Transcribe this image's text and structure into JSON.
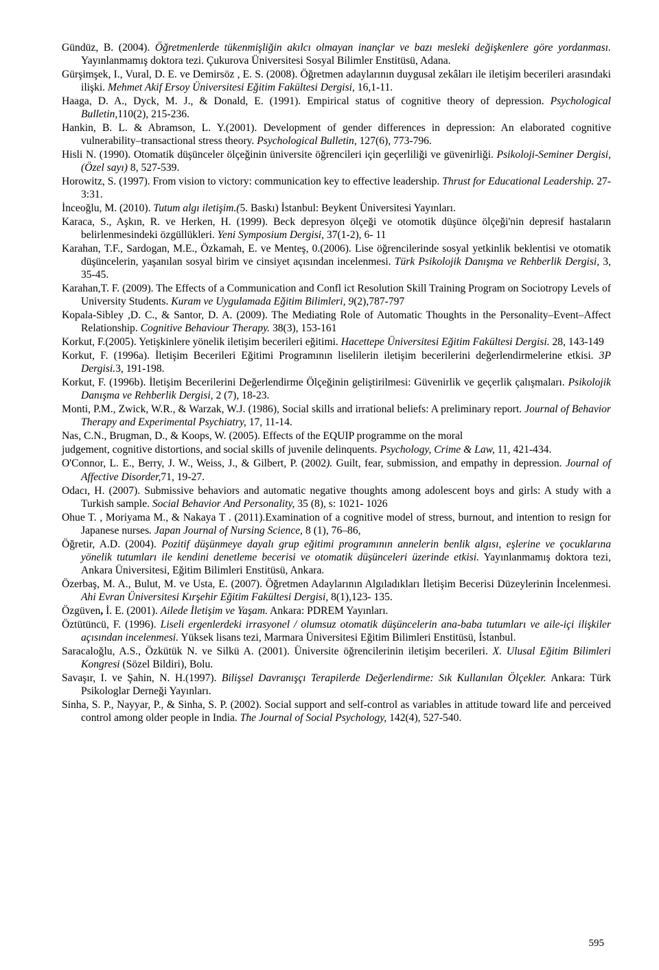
{
  "page_number": "595",
  "references": [
    "Gündüz, B. (2004). <em>Öğretmenlerde tükenmişliğin akılcı olmayan inançlar ve bazı mesleki değişkenlere göre yordanması.</em> Yayınlanmamış doktora tezi. Çukurova Üniversitesi Sosyal Bilimler Enstitüsü, Adana.",
    "Gürşimşek, I., Vural, D. E. ve Demirsöz , E. S. (2008). Öğretmen adaylarının duygusal zekâları ile iletişim becerileri arasındaki ilişki. <em>Mehmet Akif Ersoy Üniversitesi Eğitim Fakültesi Dergisi,</em> 16,1-11.",
    "Haaga, D. A., Dyck, M. J., & Donald, E. (1991). Empirical status of cognitive theory of depression. <em>Psychological Bulletin,</em>110(2), 215-236.",
    "Hankin, B. L. & Abramson, L. Y.(2001). Development of gender differences in depression: An elaborated cognitive vulnerability–transactional stress theory. <em>Psychological Bulletin,</em> 127(6), 773-796.",
    "Hisli N. (1990). Otomatik düşünceler ölçeğinin üniversite öğrencileri için geçerliliği ve güvenirliği. <em>Psikoloji-Seminer Dergisi, (Özel sayı)</em> 8, 527-539.",
    "Horowitz, S. (1997). From vision to victory: communication key to effective leadership.  <em>Thrust for Educational Leadership.</em> 27-3:31.",
    "İnceoğlu, M. (2010). <em>Tutum algı iletişim.(</em>5. Baskı) İstanbul: Beykent Üniversitesi Yayınları.",
    "Karaca, S., Aşkın, R. ve Herken, H. (1999). Beck depresyon ölçeği ve otomotik düşünce ölçeği'nin depresif hastaların belirlenmesindeki özgüllükleri. <em>Yeni Symposium Dergisi,</em> 37(1-2), 6- 11",
    "Karahan, T.F., Sardogan, M.E., Özkamah, E. ve Menteş, 0.(2006). Lise öğrencilerinde sosyal yetkinlik beklentisi ve otomatik düşüncelerin, yaşanılan sosyal birim ve cinsiyet açısından incelenmesi. <em>Türk Psikolojik Danışma ve Rehberlik Dergisi,</em> 3, 35-45.",
    "Karahan,T. F. (2009). The Effects of a Communication and Confl ict Resolution Skill Training Program on Sociotropy Levels of University Students. <em>Kuram ve Uygulamada Eğitim Bilimleri, 9</em>(2),787-797",
    "Kopala-Sibley ,D. C., & Santor, D. A. (2009). The Mediating Role of Automatic Thoughts in the Personality–Event–Affect Relationship. <em>Cognitive Behaviour Therapy.</em> 38(3), 153-161",
    "Korkut, F.(2005). Yetişkinlere yönelik iletişim becerileri eğitimi. <em>Hacettepe Üniversitesi Eğitim Fakültesi Dergisi.</em> 28, 143-149",
    "Korkut, F. (1996a). İletişim Becerileri Eğitimi Programının liselilerin iletişim becerilerini değerlendirmelerine etkisi. <em>3P Dergisi.</em>3, 191-198.",
    "Korkut, F. (1996b). İletişim Becerilerini Değerlendirme Ölçeğinin geliştirilmesi: Güvenirlik ve geçerlik çalışmaları. <em>Psikolojik Danışma ve Rehberlik Dergisi,</em> 2 (7), 18-23.",
    "Monti, P.M., Zwick, W.R., & Warzak, W.J. (1986), Social skills and irrational beliefs: A preliminary report. <em>Journal of Behavior Therapy and Experimental Psychiatry,</em> 17, 11-14.",
    "Nas, C.N., Brugman, D., & Koops, W. (2005). Effects of the EQUIP programme on the moral",
    "judgement, cognitive distortions, and social skills of juvenile delinquents. <em>Psychology, Crime & Law,</em> 11, 421-434.",
    "O'Connor, L. E., Berry, J. W., Weiss, J., & Gilbert, P. (2002<em>).</em> Guilt, fear, submission, and empathy in depression. <em>Journal of Affective Disorder,</em>71, 19-27.",
    "Odacı, H. (2007). Submissive behaviors and automatic negative thoughts among adolescent boys and girls: A study with a Turkish sample. <em>Social Behavior And Personality,</em> 35 (8), s: 1021- 1026",
    "Ohue T. , Moriyama M., & Nakaya T . (2011).Examination of a cognitive model of stress, burnout, and intention to resign for Japanese nurses<em>. Japan Journal of Nursing Science,</em> 8 (1), 76–86,",
    "Öğretir, A.D. (2004). <em>Pozitif düşünmeye dayalı grup eğitimi programının annelerin benlik algısı, eşlerine ve çocuklarına yönelik tutumları ile kendini denetleme becerisi ve otomatik düşünceleri üzerinde etkisi.</em> Yayınlanmamış doktora tezi, Ankara Üniversitesi, Eğitim Bilimleri Enstitüsü, Ankara.",
    "Özerbaş, M. A., Bulut, M. ve Usta, E. (2007). Öğretmen Adaylarının Algıladıkları İletişim Becerisi Düzeylerinin İncelenmesi. <em>Ahi Evran Üniversitesi Kırşehir Eğitim Fakültesi Dergisi,</em> 8(1),123- 135.",
    "Özgüven<strong>,</strong> İ. E. (2001). <em>Ailede İletişim ve Yaşam.</em> Ankara: PDREM Yayınları.",
    "Öztütüncü, F. (1996). <em>Liseli ergenlerdeki irrasyonel / olumsuz otomatik düşüncelerin ana-baba tutumları ve aile-içi ilişkiler açısından incelenmesi.</em> Yüksek lisans tezi, Marmara Üniversitesi Eğitim Bilimleri Enstitüsü, İstanbul.",
    "Saracaloğlu, A.S., Özkütük N. ve Silkü A. (2001). Üniversite öğrencilerinin iletişim becerileri. <em>X. Ulusal Eğitim Bilimleri Kongresi</em> (Sözel Bildiri), Bolu.",
    "Savaşır, I. ve Şahin, N. H.(1997). <em>Bilişsel Davranışçı Terapilerde Değerlendirme: Sık Kullanılan Ölçekler.</em> Ankara: Türk Psikologlar Derneği Yayınları.",
    "Sinha, S. P., Nayyar, P., & Sinha, S. P. (2002). Social support and self-control as variables in attitude toward life and perceived control among older people in India. <em>The Journal of Social Psychology,</em> 142(4), 527-540."
  ]
}
